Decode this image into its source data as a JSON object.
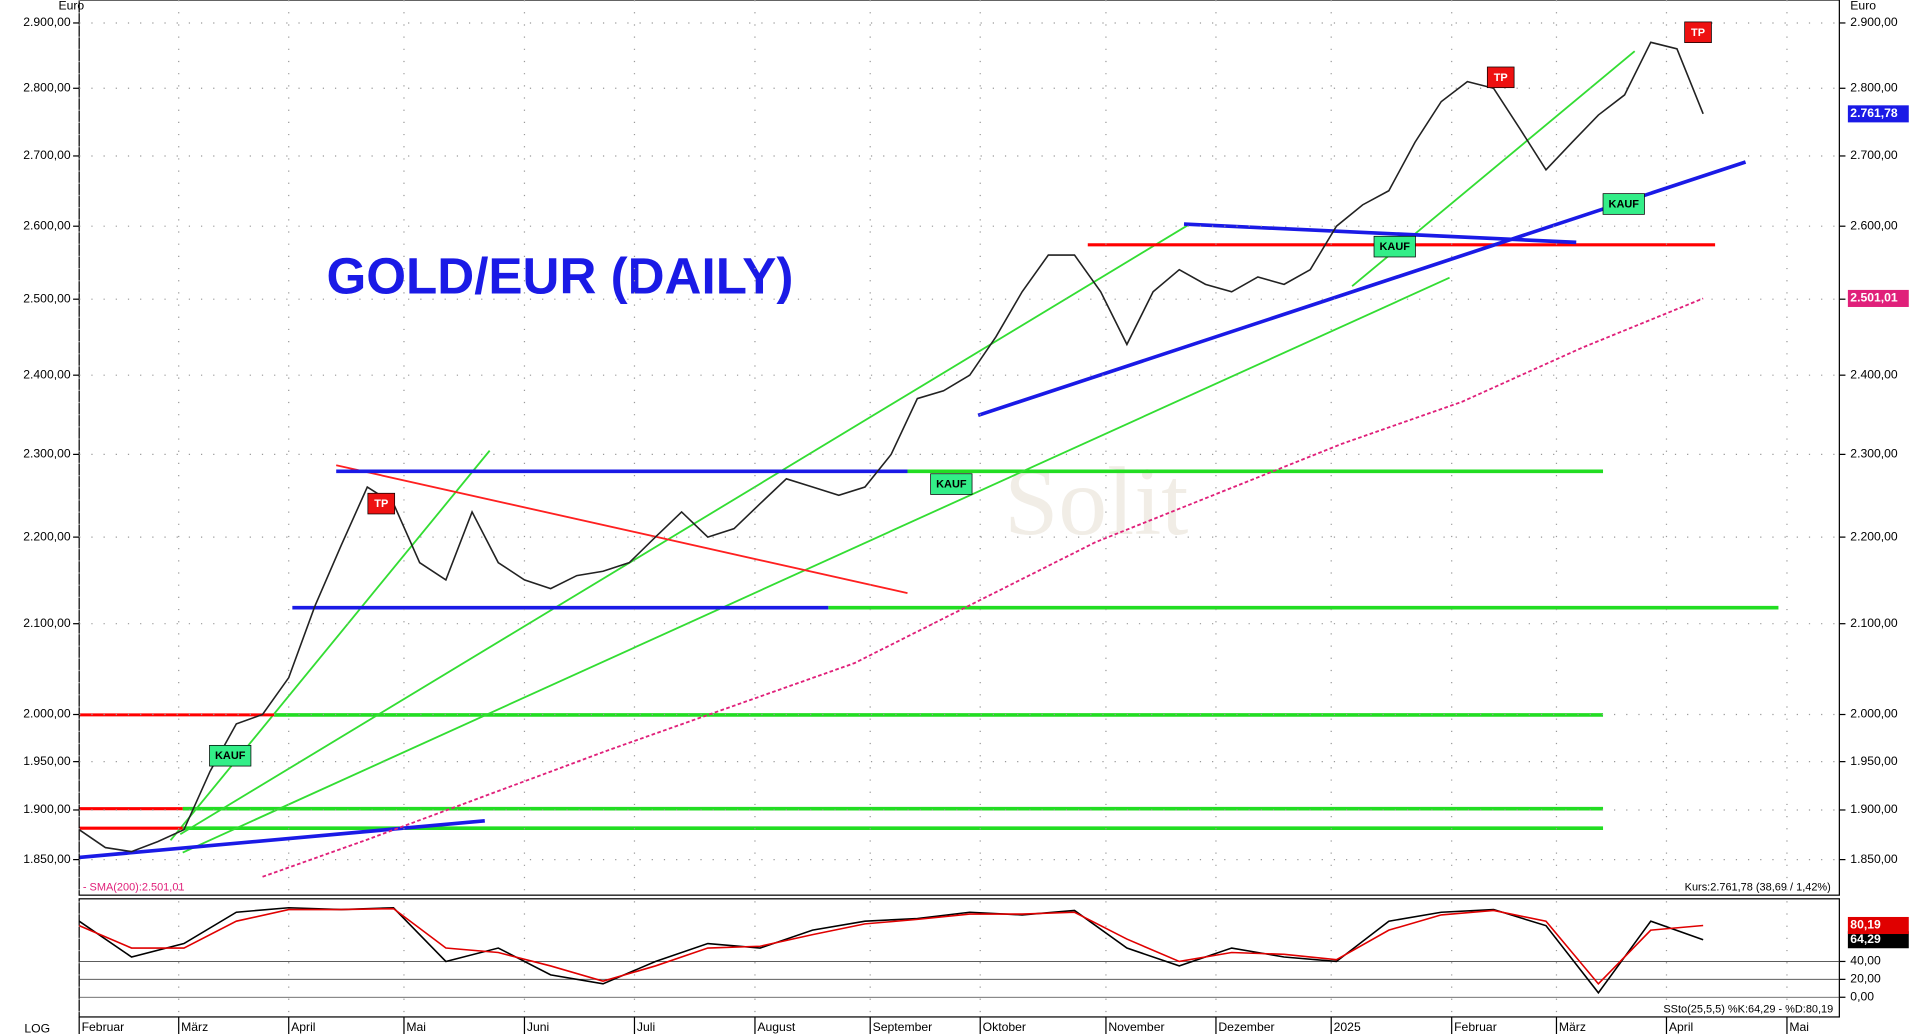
{
  "title": "GOLD/EUR (DAILY)",
  "watermark": "Solit",
  "scale_label": "LOG",
  "annotations": [
    "KAUF",
    "KAUF",
    "KAUF",
    "KAUF",
    "TP",
    "TP",
    "TP"
  ],
  "chart_data": [
    {
      "type": "line",
      "y_label": "Euro",
      "log_scale": true,
      "grid": true,
      "xlim": [
        0,
        336
      ],
      "xticks": [
        {
          "value": 0,
          "label": "Februar"
        },
        {
          "value": 19,
          "label": "März"
        },
        {
          "value": 40,
          "label": "April"
        },
        {
          "value": 62,
          "label": "Mai"
        },
        {
          "value": 85,
          "label": "Juni"
        },
        {
          "value": 106,
          "label": "Juli"
        },
        {
          "value": 129,
          "label": "August"
        },
        {
          "value": 151,
          "label": "September"
        },
        {
          "value": 172,
          "label": "Oktober"
        },
        {
          "value": 196,
          "label": "November"
        },
        {
          "value": 217,
          "label": "Dezember"
        },
        {
          "value": 239,
          "label": "2025"
        },
        {
          "value": 262,
          "label": "Februar"
        },
        {
          "value": 282,
          "label": "März"
        },
        {
          "value": 303,
          "label": "April"
        },
        {
          "value": 326,
          "label": "Mai"
        }
      ],
      "ylim": [
        1815,
        2936
      ],
      "yticks": [
        {
          "value": 1850,
          "label": "1.850,00"
        },
        {
          "value": 1900,
          "label": "1.900,00"
        },
        {
          "value": 1950,
          "label": "1.950,00"
        },
        {
          "value": 2000,
          "label": "2.000,00"
        },
        {
          "value": 2100,
          "label": "2.100,00"
        },
        {
          "value": 2200,
          "label": "2.200,00"
        },
        {
          "value": 2300,
          "label": "2.300,00"
        },
        {
          "value": 2400,
          "label": "2.400,00"
        },
        {
          "value": 2500,
          "label": "2.500,00"
        },
        {
          "value": 2600,
          "label": "2.600,00"
        },
        {
          "value": 2700,
          "label": "2.700,00"
        },
        {
          "value": 2800,
          "label": "2.800,00"
        },
        {
          "value": 2900,
          "label": "2.900,00"
        }
      ],
      "legend_text": "- SMA(200):2.501,01",
      "info_text": "Kurs:2.761,78 (38,69 / 1,42%)",
      "series": [
        {
          "color": "#222222",
          "last_label": "2.761,78",
          "last_color": "#1a1ae6",
          "x": [
            0,
            5,
            10,
            15,
            20,
            25,
            30,
            35,
            40,
            45,
            50,
            55,
            60,
            65,
            70,
            75,
            80,
            85,
            90,
            95,
            100,
            105,
            110,
            115,
            120,
            125,
            130,
            135,
            140,
            145,
            150,
            155,
            160,
            165,
            170,
            175,
            180,
            185,
            190,
            195,
            200,
            205,
            210,
            215,
            220,
            225,
            230,
            235,
            240,
            245,
            250,
            255,
            260,
            265,
            270,
            275,
            280,
            285,
            290,
            295,
            300,
            305,
            310
          ],
          "values": [
            1880,
            1862,
            1858,
            1868,
            1880,
            1940,
            1990,
            2000,
            2040,
            2120,
            2190,
            2260,
            2240,
            2170,
            2150,
            2230,
            2170,
            2150,
            2140,
            2155,
            2160,
            2170,
            2200,
            2230,
            2200,
            2210,
            2240,
            2270,
            2260,
            2250,
            2260,
            2300,
            2370,
            2380,
            2400,
            2450,
            2510,
            2560,
            2560,
            2510,
            2440,
            2510,
            2540,
            2520,
            2510,
            2530,
            2520,
            2540,
            2600,
            2630,
            2650,
            2720,
            2780,
            2810,
            2800,
            2740,
            2680,
            2720,
            2760,
            2790,
            2870,
            2860,
            2761.78
          ]
        },
        {
          "color": "#e0207a",
          "dashed": true,
          "last_label": "2.501,01",
          "last_color": "#e0207a",
          "x": [
            35,
            55,
            101,
            148,
            194,
            241,
            264,
            287,
            310
          ],
          "values": [
            1833,
            1870,
            1962,
            2056,
            2194,
            2313,
            2366,
            2436,
            2501.01
          ]
        }
      ]
    },
    {
      "type": "line",
      "ylim": [
        -22,
        110
      ],
      "yticks": [
        {
          "value": 0,
          "label": "0,00"
        },
        {
          "value": 20,
          "label": "20,00"
        },
        {
          "value": 40,
          "label": "40,00"
        }
      ],
      "legend_text": "SSto(25,5,5) %K:64,29 - %D:80,19",
      "series": [
        {
          "color": "#000000",
          "last_label": "64,29",
          "last_color": "#000000",
          "x": [
            0,
            10,
            20,
            30,
            40,
            50,
            60,
            70,
            80,
            90,
            100,
            110,
            120,
            130,
            140,
            150,
            160,
            170,
            180,
            190,
            200,
            210,
            220,
            230,
            240,
            250,
            260,
            270,
            280,
            290,
            300,
            310
          ],
          "values": [
            85,
            45,
            60,
            95,
            100,
            98,
            100,
            40,
            55,
            25,
            15,
            40,
            60,
            55,
            75,
            85,
            88,
            95,
            92,
            97,
            55,
            35,
            55,
            45,
            40,
            85,
            95,
            98,
            80,
            5,
            85,
            64.29
          ]
        },
        {
          "color": "#e00000",
          "last_label": "80,19",
          "last_color": "#e00000",
          "x": [
            0,
            10,
            20,
            30,
            40,
            50,
            60,
            70,
            80,
            90,
            100,
            110,
            120,
            130,
            140,
            150,
            160,
            170,
            180,
            190,
            200,
            210,
            220,
            230,
            240,
            250,
            260,
            270,
            280,
            290,
            300,
            310
          ],
          "values": [
            80,
            55,
            55,
            85,
            98,
            98,
            99,
            55,
            50,
            35,
            18,
            35,
            55,
            57,
            70,
            82,
            87,
            93,
            93,
            95,
            65,
            40,
            50,
            48,
            42,
            75,
            92,
            97,
            85,
            15,
            75,
            80.19
          ]
        }
      ]
    }
  ]
}
